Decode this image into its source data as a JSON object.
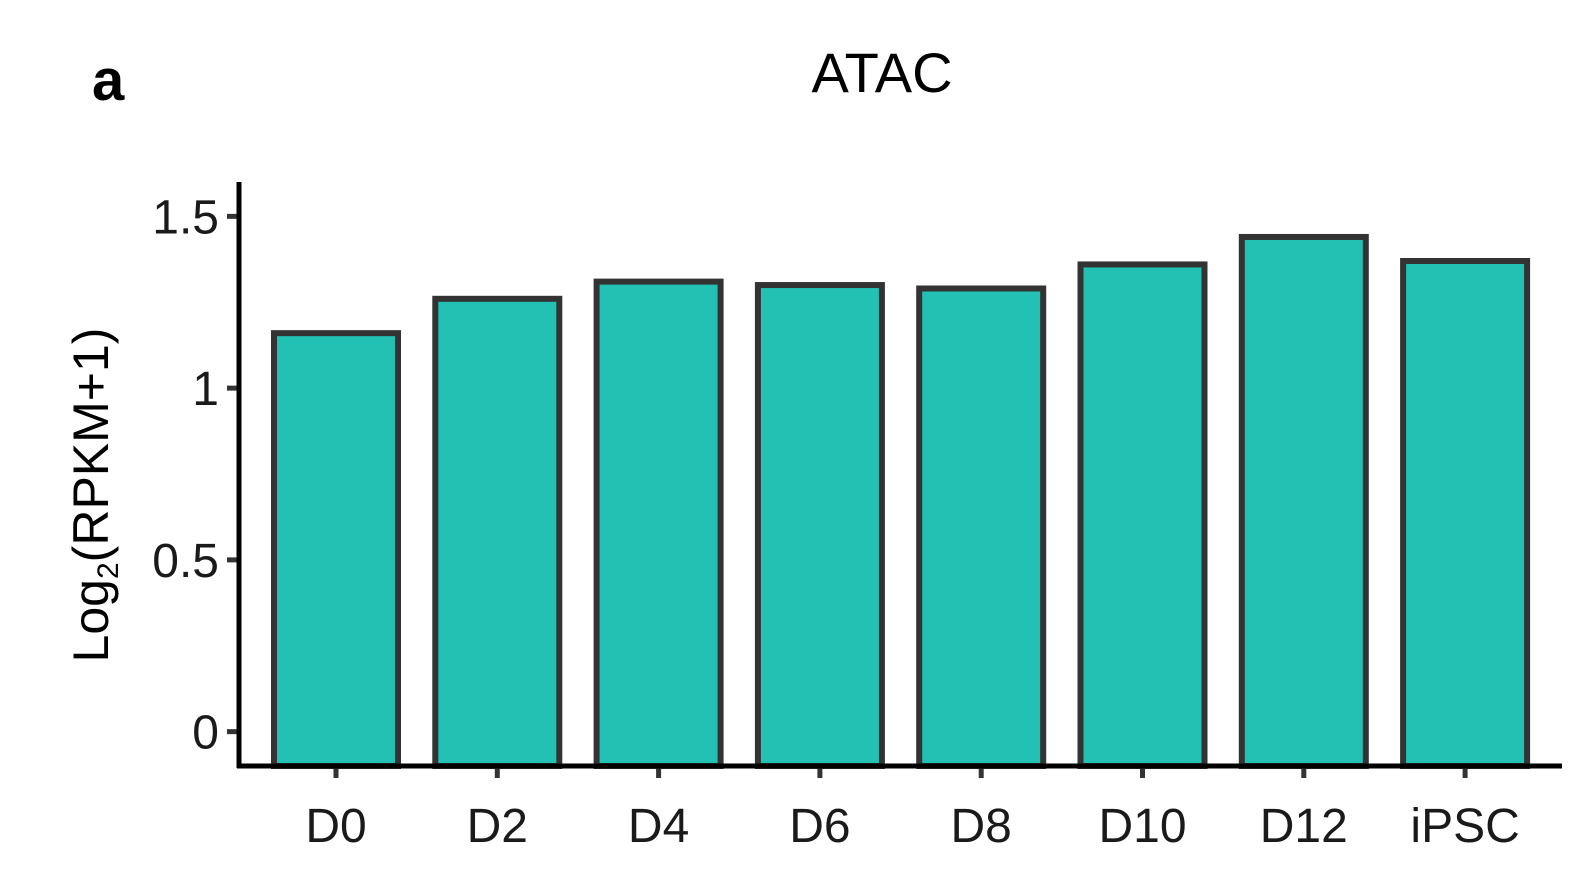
{
  "panel_label": "a",
  "chart_data": {
    "type": "bar",
    "title": "ATAC",
    "ylabel": {
      "prefix": "Log",
      "subscript": "2",
      "suffix": "(RPKM+1)"
    },
    "xlabel": "",
    "categories": [
      "D0",
      "D2",
      "D4",
      "D6",
      "D8",
      "D10",
      "D12",
      "iPSC"
    ],
    "values": [
      1.16,
      1.26,
      1.31,
      1.3,
      1.29,
      1.36,
      1.44,
      1.37
    ],
    "ylim": [
      -0.1,
      1.6
    ],
    "yticks": [
      0,
      0.5,
      1,
      1.5
    ],
    "ytick_labels": [
      "0",
      "0.5",
      "1",
      "1.5"
    ],
    "bar_color": "#22c1b4",
    "bar_edge_color": "#333333",
    "grid": false,
    "legend": "none"
  }
}
